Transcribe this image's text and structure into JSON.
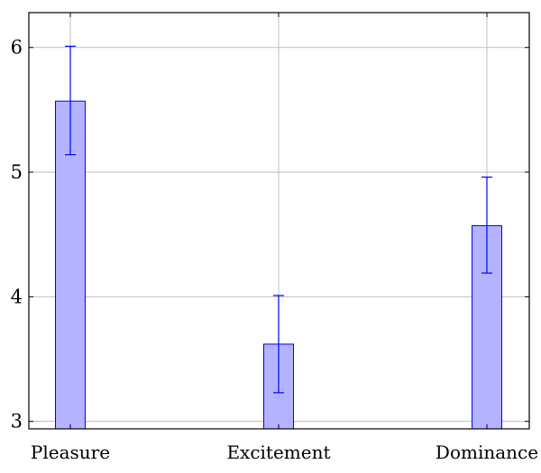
{
  "chart_data": {
    "type": "bar",
    "title": "",
    "xlabel": "",
    "ylabel": "",
    "categories": [
      "Pleasure",
      "Excitement",
      "Dominance"
    ],
    "values": [
      5.57,
      3.62,
      4.57
    ],
    "error_low": [
      5.14,
      3.23,
      4.19
    ],
    "error_high": [
      6.01,
      4.01,
      4.96
    ],
    "ylim": [
      2.94,
      6.28
    ],
    "yticks": [
      3,
      4,
      5,
      6
    ],
    "grid": true,
    "legend": "none",
    "colors": {
      "bar_fill": "#b3b3ff",
      "bar_stroke": "#0000ff",
      "error_bar": "#0000ff",
      "grid": "#b0b0b0",
      "axis": "#000000"
    }
  }
}
